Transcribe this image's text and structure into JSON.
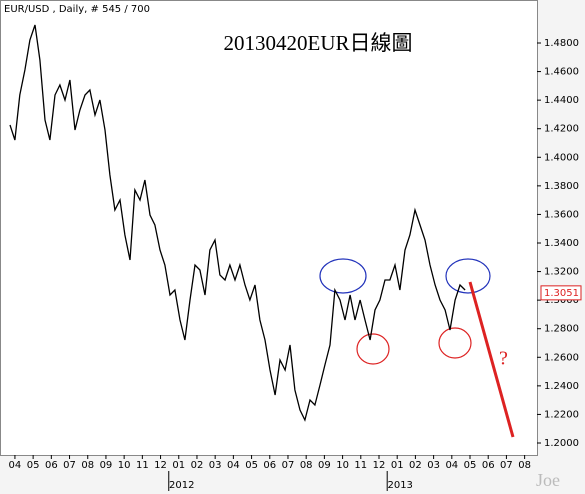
{
  "chart_data": {
    "type": "line",
    "title": "20130420EUR日線圖",
    "header": "EUR/USD , Daily, # 545 / 700",
    "watermark": "Joe",
    "annotation": "?",
    "last_price": 1.3051,
    "color": "#000000",
    "x": [
      -0.27,
      0,
      0.27,
      0.55,
      0.82,
      1.1,
      1.37,
      1.65,
      1.92,
      2.2,
      2.47,
      2.75,
      3.02,
      3.3,
      3.57,
      3.85,
      4.12,
      4.4,
      4.67,
      4.95,
      5.22,
      5.49,
      5.77,
      6.04,
      6.32,
      6.59,
      6.87,
      7.14,
      7.42,
      7.69,
      7.97,
      8.24,
      8.52,
      8.79,
      9.07,
      9.34,
      9.62,
      9.89,
      10.16,
      10.44,
      10.71,
      10.99,
      11.26,
      11.54,
      11.81,
      12.09,
      12.36,
      12.64,
      12.91,
      13.19,
      13.46,
      13.74,
      14.01,
      14.29,
      14.56,
      14.84,
      15.11,
      15.38,
      15.66,
      15.93,
      16.21,
      16.48,
      16.76,
      17.03,
      17.31,
      17.58,
      17.86,
      18.13,
      18.41,
      18.68,
      18.96,
      19.23,
      19.51,
      19.78,
      20.05,
      20.33,
      20.6,
      20.88,
      21.15,
      21.43,
      21.7,
      21.98,
      22.25,
      22.53,
      22.8,
      23.08,
      23.35,
      23.63,
      23.9,
      24.18,
      24.45,
      24.73
    ],
    "values": [
      1.4226,
      1.4121,
      1.4436,
      1.4611,
      1.4821,
      1.4926,
      1.4681,
      1.4261,
      1.4121,
      1.4436,
      1.4506,
      1.4401,
      1.4541,
      1.4191,
      1.4331,
      1.4436,
      1.4471,
      1.4296,
      1.4401,
      1.4191,
      1.3876,
      1.3631,
      1.3701,
      1.3456,
      1.3281,
      1.3771,
      1.3701,
      1.3841,
      1.3596,
      1.3526,
      1.3351,
      1.3246,
      1.3036,
      1.3071,
      1.2861,
      1.2721,
      1.3001,
      1.3246,
      1.3211,
      1.3036,
      1.3351,
      1.3421,
      1.3176,
      1.3141,
      1.3246,
      1.3141,
      1.3246,
      1.3106,
      1.3001,
      1.3106,
      1.2861,
      1.2721,
      1.2511,
      1.2336,
      1.2581,
      1.2511,
      1.2686,
      1.2371,
      1.2231,
      1.2161,
      1.2301,
      1.2266,
      1.2406,
      1.2546,
      1.2686,
      1.3071,
      1.3001,
      1.2861,
      1.3036,
      1.2861,
      1.3001,
      1.2861,
      1.2721,
      1.2931,
      1.3001,
      1.3141,
      1.3141,
      1.3246,
      1.3071,
      1.3351,
      1.3456,
      1.3631,
      1.3526,
      1.3421,
      1.3246,
      1.3106,
      1.3001,
      1.2931,
      1.2791,
      1.3001,
      1.3106,
      1.3071
    ],
    "xlim": [
      -0.82,
      28.68
    ],
    "ylim": [
      1.1916,
      1.5101
    ],
    "xticks": [
      {
        "value": 0,
        "label": "04"
      },
      {
        "value": 1,
        "label": "05"
      },
      {
        "value": 2,
        "label": "06"
      },
      {
        "value": 3,
        "label": "07"
      },
      {
        "value": 4,
        "label": "08"
      },
      {
        "value": 5,
        "label": "09"
      },
      {
        "value": 6,
        "label": "10"
      },
      {
        "value": 7,
        "label": "11"
      },
      {
        "value": 8,
        "label": "12"
      },
      {
        "value": 9,
        "label": "01"
      },
      {
        "value": 10,
        "label": "02"
      },
      {
        "value": 11,
        "label": "03"
      },
      {
        "value": 12,
        "label": "04"
      },
      {
        "value": 13,
        "label": "05"
      },
      {
        "value": 14,
        "label": "06"
      },
      {
        "value": 15,
        "label": "07"
      },
      {
        "value": 16,
        "label": "08"
      },
      {
        "value": 17,
        "label": "09"
      },
      {
        "value": 18,
        "label": "10"
      },
      {
        "value": 19,
        "label": "11"
      },
      {
        "value": 20,
        "label": "12"
      },
      {
        "value": 21,
        "label": "01"
      },
      {
        "value": 22,
        "label": "02"
      },
      {
        "value": 23,
        "label": "03"
      },
      {
        "value": 24,
        "label": "04"
      },
      {
        "value": 25,
        "label": "05"
      },
      {
        "value": 26,
        "label": "06"
      },
      {
        "value": 27,
        "label": "07"
      },
      {
        "value": 28,
        "label": "08"
      }
    ],
    "year_ticks": [
      {
        "value": 9,
        "label": "2012"
      },
      {
        "value": 21,
        "label": "2013"
      }
    ],
    "yticks": [
      {
        "value": 1.2,
        "label": "1.2000"
      },
      {
        "value": 1.22,
        "label": "1.2200"
      },
      {
        "value": 1.24,
        "label": "1.2400"
      },
      {
        "value": 1.26,
        "label": "1.2600"
      },
      {
        "value": 1.28,
        "label": "1.2800"
      },
      {
        "value": 1.3,
        "label": "1.3000"
      },
      {
        "value": 1.32,
        "label": "1.3200"
      },
      {
        "value": 1.34,
        "label": "1.3400"
      },
      {
        "value": 1.36,
        "label": "1.3600"
      },
      {
        "value": 1.38,
        "label": "1.3800"
      },
      {
        "value": 1.4,
        "label": "1.4000"
      },
      {
        "value": 1.42,
        "label": "1.4200"
      },
      {
        "value": 1.44,
        "label": "1.4400"
      },
      {
        "value": 1.46,
        "label": "1.4600"
      },
      {
        "value": 1.48,
        "label": "1.4800"
      }
    ]
  }
}
